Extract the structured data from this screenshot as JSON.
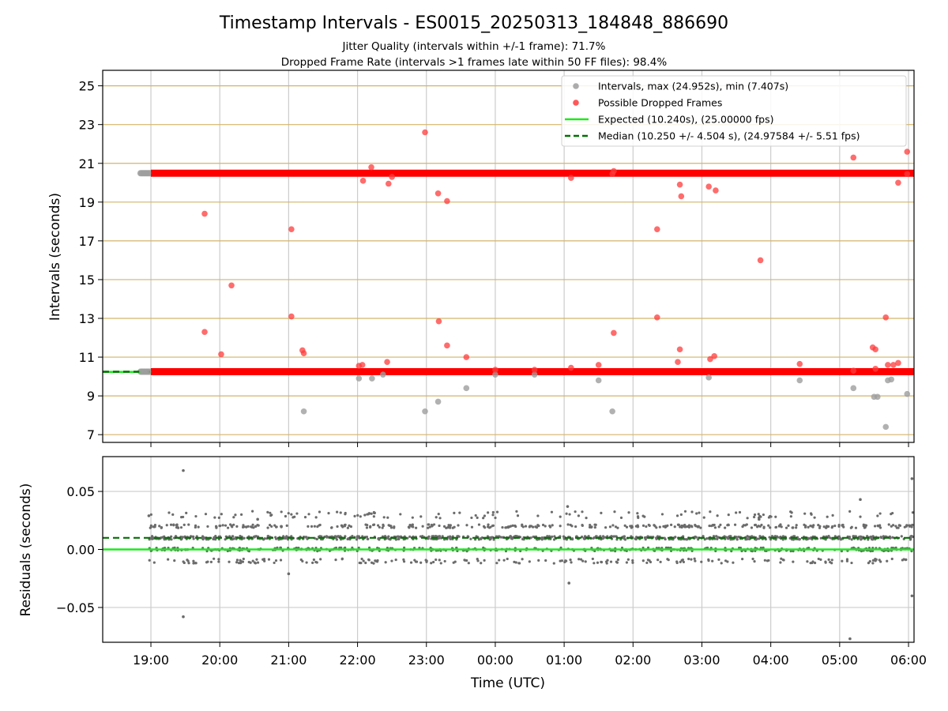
{
  "chart_data": {
    "type": "scatter",
    "title": "Timestamp Intervals - ES0015_20250313_184848_886690",
    "subtitle_lines": [
      "Jitter Quality (intervals within +/-1 frame): 71.7%",
      "Dropped Frame Rate (intervals >1 frames late within 50 FF files): 98.4%"
    ],
    "xlabel": "Time (UTC)",
    "x_tick_labels": [
      "19:00",
      "20:00",
      "21:00",
      "22:00",
      "23:00",
      "00:00",
      "01:00",
      "02:00",
      "03:00",
      "04:00",
      "05:00",
      "06:00"
    ],
    "x_range_hours": [
      18.3,
      30.08
    ],
    "top_panel": {
      "ylabel": "Intervals (seconds)",
      "ylim": [
        6.6,
        25.8
      ],
      "y_ticks": [
        7,
        9,
        11,
        13,
        15,
        17,
        19,
        21,
        23,
        25
      ],
      "y_tick_labels": [
        "7",
        "9",
        "11",
        "13",
        "15",
        "17",
        "19",
        "21",
        "23",
        "25"
      ],
      "grid": true,
      "legend": {
        "placement": "top-right",
        "entries": [
          {
            "label": "Intervals, max (24.952s), min (7.407s)",
            "marker": "circle",
            "color": "#9e9e9e"
          },
          {
            "label": "Possible Dropped Frames",
            "marker": "circle",
            "color": "#ff3b3b"
          },
          {
            "label": "Expected (10.240s), (25.00000 fps)",
            "marker": "line",
            "color": "#1ee81e"
          },
          {
            "label": "Median (10.250 +/- 4.504 s), (24.97584 +/- 5.51 fps)",
            "marker": "dashed",
            "color": "#007000"
          }
        ]
      },
      "expected_interval": 10.24,
      "median_interval": 10.25,
      "bands": [
        {
          "level": 20.49,
          "x_start": 19.0,
          "x_end": 30.08,
          "color": "#ff0000"
        },
        {
          "level": 10.25,
          "x_start": 19.0,
          "x_end": 30.08,
          "color": "#ff0000"
        }
      ],
      "gray_band_start": [
        {
          "level": 20.49,
          "x_start": 18.85,
          "x_end": 19.0
        },
        {
          "level": 10.25,
          "x_start": 18.85,
          "x_end": 19.0
        }
      ],
      "gray_points": [
        [
          18.87,
          20.49
        ],
        [
          18.9,
          20.49
        ],
        [
          18.93,
          20.49
        ],
        [
          18.96,
          20.49
        ],
        [
          18.87,
          10.25
        ],
        [
          18.9,
          10.25
        ],
        [
          18.93,
          10.25
        ],
        [
          18.96,
          10.25
        ],
        [
          21.22,
          8.2
        ],
        [
          22.02,
          9.9
        ],
        [
          22.21,
          9.9
        ],
        [
          22.37,
          10.1
        ],
        [
          22.98,
          8.2
        ],
        [
          23.17,
          8.7
        ],
        [
          23.58,
          9.4
        ],
        [
          24.0,
          10.1
        ],
        [
          24.57,
          10.1
        ],
        [
          25.5,
          9.8
        ],
        [
          25.7,
          8.2
        ],
        [
          27.1,
          9.95
        ],
        [
          28.42,
          9.8
        ],
        [
          29.2,
          9.4
        ],
        [
          29.5,
          8.95
        ],
        [
          29.55,
          8.95
        ],
        [
          29.67,
          7.4
        ],
        [
          29.7,
          9.8
        ],
        [
          29.75,
          9.85
        ],
        [
          29.98,
          9.1
        ]
      ],
      "red_points": [
        [
          19.78,
          18.4
        ],
        [
          19.78,
          12.3
        ],
        [
          20.02,
          11.15
        ],
        [
          20.17,
          14.7
        ],
        [
          21.04,
          17.6
        ],
        [
          21.04,
          13.1
        ],
        [
          21.2,
          11.35
        ],
        [
          21.22,
          11.2
        ],
        [
          22.02,
          10.55
        ],
        [
          22.07,
          10.6
        ],
        [
          22.08,
          20.1
        ],
        [
          22.2,
          20.8
        ],
        [
          22.43,
          10.75
        ],
        [
          22.45,
          19.95
        ],
        [
          22.5,
          20.3
        ],
        [
          22.98,
          22.6
        ],
        [
          23.17,
          19.45
        ],
        [
          23.18,
          12.85
        ],
        [
          23.3,
          19.05
        ],
        [
          23.3,
          11.6
        ],
        [
          23.58,
          11.0
        ],
        [
          24.0,
          10.35
        ],
        [
          24.57,
          10.35
        ],
        [
          25.1,
          20.25
        ],
        [
          25.1,
          10.45
        ],
        [
          25.5,
          10.6
        ],
        [
          25.7,
          20.45
        ],
        [
          25.72,
          20.6
        ],
        [
          25.72,
          12.25
        ],
        [
          26.35,
          17.6
        ],
        [
          26.35,
          13.05
        ],
        [
          26.65,
          10.75
        ],
        [
          26.68,
          19.9
        ],
        [
          26.68,
          11.4
        ],
        [
          26.7,
          19.3
        ],
        [
          27.1,
          19.8
        ],
        [
          27.12,
          10.9
        ],
        [
          27.18,
          11.05
        ],
        [
          27.2,
          19.6
        ],
        [
          27.85,
          16.0
        ],
        [
          28.42,
          10.65
        ],
        [
          29.2,
          21.3
        ],
        [
          29.2,
          10.3
        ],
        [
          29.48,
          11.5
        ],
        [
          29.52,
          11.4
        ],
        [
          29.52,
          10.4
        ],
        [
          29.67,
          13.05
        ],
        [
          29.7,
          10.6
        ],
        [
          29.78,
          10.6
        ],
        [
          29.85,
          20.0
        ],
        [
          29.85,
          10.7
        ],
        [
          29.98,
          21.6
        ],
        [
          29.98,
          20.45
        ]
      ]
    },
    "bottom_panel": {
      "ylabel": "Residuals (seconds)",
      "ylim": [
        -0.08,
        0.08
      ],
      "y_ticks": [
        0.05,
        0.0,
        -0.05
      ],
      "y_tick_labels": [
        "0.05",
        "0.00",
        "−0.05"
      ],
      "grid": true,
      "expected_level": 0.0,
      "median_level": 0.01,
      "point_count": 1800,
      "outliers": [
        [
          18.97,
          0.029
        ],
        [
          19.47,
          0.068
        ],
        [
          19.47,
          -0.058
        ],
        [
          20.55,
          0.026
        ],
        [
          21.0,
          -0.021
        ],
        [
          22.17,
          0.031
        ],
        [
          25.05,
          0.037
        ],
        [
          25.07,
          -0.029
        ],
        [
          27.83,
          0.026
        ],
        [
          29.15,
          -0.077
        ],
        [
          29.3,
          0.043
        ],
        [
          30.05,
          0.061
        ],
        [
          30.05,
          -0.04
        ]
      ]
    },
    "colors": {
      "intervals": "#9e9e9e",
      "dropped": "#ff3b3b",
      "expected": "#1ee81e",
      "median": "#007000",
      "grid_top": "#d4b468",
      "grid": "#cccccc",
      "residual_points": "#6b6b6b"
    }
  }
}
